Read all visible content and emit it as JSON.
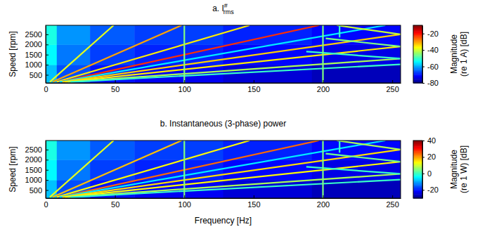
{
  "chart_data": [
    {
      "type": "heatmap",
      "title": "a. I",
      "title_superscript": "#",
      "title_subscript": "rms",
      "y_label": "Speed [rpm]",
      "xlim": [
        0,
        256
      ],
      "xticks": [
        0,
        50,
        100,
        150,
        200,
        250
      ],
      "ylim": [
        100,
        2950
      ],
      "yticks": [
        500,
        1000,
        1500,
        2000,
        2500
      ],
      "cell_x_edges": [
        0,
        8,
        32,
        64,
        128,
        192,
        256
      ],
      "cell_y_edges": [
        100,
        1000,
        2000,
        2950
      ],
      "cells": [
        [
          -58,
          -66,
          -70,
          -72,
          -74,
          -76
        ],
        [
          -54,
          -63,
          -67,
          -69,
          -71,
          -73
        ],
        [
          -52,
          -61,
          -65,
          -67,
          -69,
          -71
        ]
      ],
      "series": [
        {
          "x": [
            3,
            49
          ],
          "values": [
            150,
            2950
          ],
          "magnitude": -38
        },
        {
          "x": [
            5,
            98
          ],
          "values": [
            150,
            2950
          ],
          "magnitude": -30
        },
        {
          "x": [
            8,
            147
          ],
          "values": [
            150,
            2950
          ],
          "magnitude": -35
        },
        {
          "x": [
            10,
            197
          ],
          "values": [
            150,
            2950
          ],
          "magnitude": -22
        },
        {
          "x": [
            10,
            245
          ],
          "values": [
            150,
            2950
          ],
          "magnitude": -55
        },
        {
          "x": [
            12,
            256
          ],
          "values": [
            150,
            2500
          ],
          "magnitude": -33
        },
        {
          "x": [
            256,
            210
          ],
          "values": [
            2500,
            2950
          ],
          "magnitude": -40
        },
        {
          "x": [
            14,
            256
          ],
          "values": [
            150,
            1900
          ],
          "magnitude": -35
        },
        {
          "x": [
            256,
            202
          ],
          "values": [
            1900,
            2300
          ],
          "magnitude": -45
        },
        {
          "x": [
            16,
            256
          ],
          "values": [
            150,
            1300
          ],
          "magnitude": -42
        },
        {
          "x": [
            256,
            188
          ],
          "values": [
            1300,
            1650
          ],
          "magnitude": -50
        },
        {
          "x": [
            18,
            256
          ],
          "values": [
            150,
            1020
          ],
          "magnitude": -50
        },
        {
          "x": [
            100,
            100
          ],
          "values": [
            100,
            2950
          ],
          "magnitude": -45
        },
        {
          "x": [
            200,
            200
          ],
          "values": [
            100,
            2950
          ],
          "magnitude": -45
        },
        {
          "x": [
            212,
            212
          ],
          "values": [
            2350,
            2950
          ],
          "magnitude": -50
        }
      ],
      "colorbar_lim": [
        -80,
        -10
      ],
      "colorbar_ticks": [
        -80,
        -60,
        -40,
        -20
      ],
      "colorbar_label": [
        "Magnitude",
        "(re 1 A) [dB]"
      ]
    },
    {
      "type": "heatmap",
      "title": "b. Instantaneous (3-phase) power",
      "x_label": "Frequency [Hz]",
      "y_label": "Speed [rpm]",
      "xlim": [
        0,
        256
      ],
      "xticks": [
        0,
        50,
        100,
        150,
        200,
        250
      ],
      "ylim": [
        100,
        2950
      ],
      "yticks": [
        500,
        1000,
        1500,
        2000,
        2500
      ],
      "cell_x_edges": [
        0,
        8,
        32,
        64,
        128,
        192,
        256
      ],
      "cell_y_edges": [
        100,
        1000,
        2000,
        2950
      ],
      "cells": [
        [
          -8,
          -16,
          -20,
          -22,
          -24,
          -26
        ],
        [
          -4,
          -13,
          -17,
          -19,
          -21,
          -23
        ],
        [
          -2,
          -11,
          -15,
          -17,
          -19,
          -21
        ]
      ],
      "series": [
        {
          "x": [
            3,
            49
          ],
          "values": [
            150,
            2950
          ],
          "magnitude": 12
        },
        {
          "x": [
            5,
            98
          ],
          "values": [
            150,
            2950
          ],
          "magnitude": 18
        },
        {
          "x": [
            8,
            147
          ],
          "values": [
            150,
            2950
          ],
          "magnitude": 14
        },
        {
          "x": [
            10,
            197
          ],
          "values": [
            150,
            2950
          ],
          "magnitude": 24
        },
        {
          "x": [
            10,
            245
          ],
          "values": [
            150,
            2950
          ],
          "magnitude": -5
        },
        {
          "x": [
            12,
            256
          ],
          "values": [
            150,
            2500
          ],
          "magnitude": 16
        },
        {
          "x": [
            256,
            210
          ],
          "values": [
            2500,
            2950
          ],
          "magnitude": 8
        },
        {
          "x": [
            14,
            256
          ],
          "values": [
            150,
            1900
          ],
          "magnitude": 14
        },
        {
          "x": [
            256,
            202
          ],
          "values": [
            1900,
            2300
          ],
          "magnitude": 4
        },
        {
          "x": [
            16,
            256
          ],
          "values": [
            150,
            1300
          ],
          "magnitude": 8
        },
        {
          "x": [
            256,
            188
          ],
          "values": [
            1300,
            1650
          ],
          "magnitude": 0
        },
        {
          "x": [
            18,
            256
          ],
          "values": [
            150,
            1020
          ],
          "magnitude": 0
        },
        {
          "x": [
            100,
            100
          ],
          "values": [
            100,
            2950
          ],
          "magnitude": 5
        },
        {
          "x": [
            200,
            200
          ],
          "values": [
            100,
            2950
          ],
          "magnitude": 5
        },
        {
          "x": [
            212,
            212
          ],
          "values": [
            2350,
            2950
          ],
          "magnitude": 0
        }
      ],
      "colorbar_lim": [
        -30,
        40
      ],
      "colorbar_ticks": [
        -20,
        0,
        20,
        40
      ],
      "colorbar_label": [
        "Magnitude",
        "(re 1 W) [dB]"
      ]
    }
  ]
}
